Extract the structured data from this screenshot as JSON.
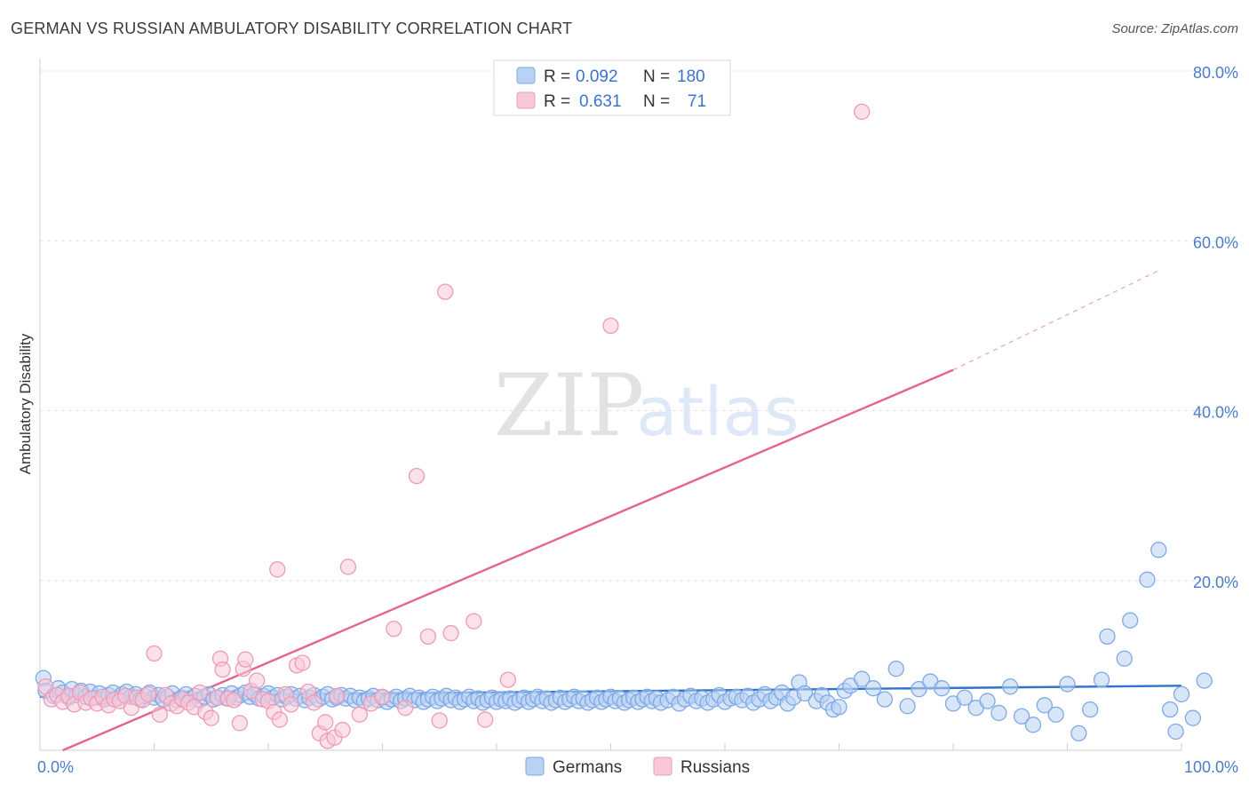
{
  "chart_data": {
    "type": "scatter",
    "title": "GERMAN VS RUSSIAN AMBULATORY DISABILITY CORRELATION CHART",
    "source": "Source: ZipAtlas.com",
    "ylabel": "Ambulatory Disability",
    "xlabel": "",
    "xlim": [
      0,
      100
    ],
    "ylim": [
      0,
      80
    ],
    "x_tick_labels": [
      "0.0%",
      "100.0%"
    ],
    "y_tick_values": [
      20,
      40,
      60,
      80
    ],
    "y_tick_labels": [
      "20.0%",
      "40.0%",
      "60.0%",
      "80.0%"
    ],
    "watermark": {
      "part1": "ZIP",
      "part2": "atlas"
    },
    "legend": [
      {
        "r_label": "R =",
        "r_value": "0.092",
        "n_label": "N =",
        "n_value": "180"
      },
      {
        "r_label": "R =",
        "r_value": "0.631",
        "n_label": "N =",
        "n_value": "71"
      }
    ],
    "series": [
      {
        "name": "Germans",
        "color": "#7ea9e6",
        "fill": "#b9d1f3",
        "line_color": "#2f74c7",
        "trend": {
          "x0": 0,
          "y0": 6.3,
          "x1": 100,
          "y1": 7.6,
          "dashed_from": null
        },
        "points": [
          [
            0.3,
            8.5
          ],
          [
            0.5,
            7.0
          ],
          [
            1.2,
            6.4
          ],
          [
            1.6,
            7.3
          ],
          [
            2.0,
            6.8
          ],
          [
            2.5,
            6.2
          ],
          [
            2.8,
            7.2
          ],
          [
            3.2,
            6.5
          ],
          [
            3.6,
            7.0
          ],
          [
            4.0,
            6.3
          ],
          [
            4.4,
            6.9
          ],
          [
            4.8,
            6.2
          ],
          [
            5.2,
            6.7
          ],
          [
            5.6,
            6.0
          ],
          [
            6.0,
            6.5
          ],
          [
            6.4,
            6.8
          ],
          [
            6.8,
            6.1
          ],
          [
            7.2,
            6.6
          ],
          [
            7.6,
            6.9
          ],
          [
            8.0,
            6.3
          ],
          [
            8.4,
            6.6
          ],
          [
            8.8,
            6.0
          ],
          [
            9.2,
            6.4
          ],
          [
            9.6,
            6.8
          ],
          [
            10.0,
            6.2
          ],
          [
            10.4,
            6.5
          ],
          [
            10.8,
            6.0
          ],
          [
            11.2,
            6.3
          ],
          [
            11.6,
            6.7
          ],
          [
            12.0,
            5.9
          ],
          [
            12.4,
            6.2
          ],
          [
            12.8,
            6.6
          ],
          [
            13.2,
            6.1
          ],
          [
            13.6,
            6.4
          ],
          [
            14.0,
            5.9
          ],
          [
            14.4,
            6.3
          ],
          [
            14.8,
            6.6
          ],
          [
            15.2,
            6.0
          ],
          [
            15.6,
            6.2
          ],
          [
            16.0,
            6.5
          ],
          [
            16.4,
            6.1
          ],
          [
            16.8,
            6.7
          ],
          [
            17.2,
            6.2
          ],
          [
            17.6,
            6.5
          ],
          [
            18.0,
            6.8
          ],
          [
            18.4,
            6.3
          ],
          [
            18.8,
            6.6
          ],
          [
            19.2,
            6.1
          ],
          [
            19.6,
            6.4
          ],
          [
            20.0,
            6.7
          ],
          [
            20.4,
            6.2
          ],
          [
            20.8,
            6.5
          ],
          [
            21.2,
            6.0
          ],
          [
            21.6,
            6.3
          ],
          [
            22.0,
            6.6
          ],
          [
            22.4,
            6.1
          ],
          [
            22.8,
            6.4
          ],
          [
            23.2,
            5.9
          ],
          [
            23.6,
            6.2
          ],
          [
            24.0,
            6.5
          ],
          [
            24.4,
            6.0
          ],
          [
            24.8,
            6.3
          ],
          [
            25.2,
            6.6
          ],
          [
            25.6,
            6.0
          ],
          [
            26.0,
            6.2
          ],
          [
            26.4,
            6.5
          ],
          [
            26.8,
            6.1
          ],
          [
            27.2,
            6.4
          ],
          [
            27.6,
            5.9
          ],
          [
            28.0,
            6.2
          ],
          [
            28.4,
            5.8
          ],
          [
            28.8,
            6.1
          ],
          [
            29.2,
            6.4
          ],
          [
            29.6,
            5.9
          ],
          [
            30.0,
            6.2
          ],
          [
            30.4,
            5.7
          ],
          [
            30.8,
            6.0
          ],
          [
            31.2,
            6.3
          ],
          [
            31.6,
            5.8
          ],
          [
            32.0,
            6.1
          ],
          [
            32.4,
            6.4
          ],
          [
            32.8,
            5.9
          ],
          [
            33.2,
            6.2
          ],
          [
            33.6,
            5.7
          ],
          [
            34.0,
            6.0
          ],
          [
            34.4,
            6.3
          ],
          [
            34.8,
            5.8
          ],
          [
            35.2,
            6.1
          ],
          [
            35.6,
            6.4
          ],
          [
            36.0,
            5.9
          ],
          [
            36.4,
            6.2
          ],
          [
            36.8,
            5.7
          ],
          [
            37.2,
            6.0
          ],
          [
            37.6,
            6.3
          ],
          [
            38.0,
            5.8
          ],
          [
            38.4,
            6.1
          ],
          [
            38.8,
            5.6
          ],
          [
            39.2,
            5.9
          ],
          [
            39.6,
            6.2
          ],
          [
            40.0,
            5.7
          ],
          [
            40.4,
            6.0
          ],
          [
            40.8,
            5.8
          ],
          [
            41.2,
            6.1
          ],
          [
            41.6,
            5.6
          ],
          [
            42.0,
            5.9
          ],
          [
            42.4,
            6.2
          ],
          [
            42.8,
            5.7
          ],
          [
            43.2,
            6.0
          ],
          [
            43.6,
            6.3
          ],
          [
            44.0,
            5.8
          ],
          [
            44.4,
            6.1
          ],
          [
            44.8,
            5.6
          ],
          [
            45.2,
            5.9
          ],
          [
            45.6,
            6.2
          ],
          [
            46.0,
            5.7
          ],
          [
            46.4,
            6.0
          ],
          [
            46.8,
            6.3
          ],
          [
            47.2,
            5.8
          ],
          [
            47.6,
            6.1
          ],
          [
            48.0,
            5.6
          ],
          [
            48.4,
            5.9
          ],
          [
            48.8,
            6.2
          ],
          [
            49.2,
            5.7
          ],
          [
            49.6,
            6.0
          ],
          [
            50.0,
            6.3
          ],
          [
            50.4,
            5.8
          ],
          [
            50.8,
            6.1
          ],
          [
            51.2,
            5.6
          ],
          [
            51.6,
            5.9
          ],
          [
            52.0,
            6.2
          ],
          [
            52.4,
            5.7
          ],
          [
            52.8,
            6.0
          ],
          [
            53.2,
            6.3
          ],
          [
            53.6,
            5.8
          ],
          [
            54.0,
            6.1
          ],
          [
            54.4,
            5.6
          ],
          [
            55.0,
            5.9
          ],
          [
            55.5,
            6.3
          ],
          [
            56.0,
            5.5
          ],
          [
            56.5,
            6.0
          ],
          [
            57.0,
            6.4
          ],
          [
            57.5,
            5.8
          ],
          [
            58.0,
            6.1
          ],
          [
            58.5,
            5.6
          ],
          [
            59.0,
            6.0
          ],
          [
            59.5,
            6.5
          ],
          [
            60.0,
            5.7
          ],
          [
            60.5,
            6.1
          ],
          [
            61.0,
            6.3
          ],
          [
            61.5,
            5.9
          ],
          [
            62.0,
            6.4
          ],
          [
            62.5,
            5.6
          ],
          [
            63.0,
            6.0
          ],
          [
            63.5,
            6.6
          ],
          [
            64.0,
            5.8
          ],
          [
            64.5,
            6.2
          ],
          [
            65.0,
            6.8
          ],
          [
            65.5,
            5.5
          ],
          [
            66.0,
            6.2
          ],
          [
            66.5,
            8.0
          ],
          [
            67.0,
            6.7
          ],
          [
            68.0,
            5.8
          ],
          [
            68.5,
            6.5
          ],
          [
            69.0,
            5.6
          ],
          [
            69.5,
            4.8
          ],
          [
            70.0,
            5.1
          ],
          [
            70.5,
            7.0
          ],
          [
            71.0,
            7.6
          ],
          [
            72.0,
            8.4
          ],
          [
            73.0,
            7.3
          ],
          [
            74.0,
            6.0
          ],
          [
            75.0,
            9.6
          ],
          [
            76.0,
            5.2
          ],
          [
            77.0,
            7.2
          ],
          [
            78.0,
            8.1
          ],
          [
            79.0,
            7.3
          ],
          [
            80.0,
            5.5
          ],
          [
            81.0,
            6.2
          ],
          [
            82.0,
            5.0
          ],
          [
            83.0,
            5.8
          ],
          [
            84.0,
            4.4
          ],
          [
            85.0,
            7.5
          ],
          [
            86.0,
            4.0
          ],
          [
            87.0,
            3.0
          ],
          [
            88.0,
            5.3
          ],
          [
            89.0,
            4.2
          ],
          [
            90.0,
            7.8
          ],
          [
            91.0,
            2.0
          ],
          [
            92.0,
            4.8
          ],
          [
            93.0,
            8.3
          ],
          [
            93.5,
            13.4
          ],
          [
            95.0,
            10.8
          ],
          [
            95.5,
            15.3
          ],
          [
            97.0,
            20.1
          ],
          [
            98.0,
            23.6
          ],
          [
            99.0,
            4.8
          ],
          [
            99.5,
            2.2
          ],
          [
            100.0,
            6.6
          ],
          [
            101.0,
            3.8
          ],
          [
            102.0,
            8.2
          ]
        ]
      },
      {
        "name": "Russians",
        "color": "#ef9ab6",
        "fill": "#f8c8d8",
        "line_color": "#e4648e",
        "trend": {
          "x0": 2.0,
          "y0": 0.0,
          "x1": 80.0,
          "y1": 44.8,
          "dashed_from": 80.0,
          "dashed_to_x": 98.0,
          "dashed_to_y": 56.5
        },
        "points": [
          [
            0.5,
            7.5
          ],
          [
            1.0,
            6.0
          ],
          [
            1.5,
            6.5
          ],
          [
            2.0,
            5.7
          ],
          [
            2.5,
            6.4
          ],
          [
            3.0,
            5.4
          ],
          [
            3.5,
            6.8
          ],
          [
            4.0,
            5.6
          ],
          [
            4.5,
            6.1
          ],
          [
            5.0,
            5.5
          ],
          [
            5.5,
            6.3
          ],
          [
            6.0,
            5.3
          ],
          [
            6.5,
            6.0
          ],
          [
            7.0,
            5.8
          ],
          [
            7.5,
            6.4
          ],
          [
            8.0,
            5.0
          ],
          [
            8.5,
            6.2
          ],
          [
            9.0,
            5.9
          ],
          [
            9.5,
            6.6
          ],
          [
            10.0,
            11.4
          ],
          [
            10.5,
            4.2
          ],
          [
            11.0,
            6.5
          ],
          [
            11.5,
            5.5
          ],
          [
            12.0,
            5.2
          ],
          [
            12.5,
            6.0
          ],
          [
            13.0,
            5.6
          ],
          [
            13.5,
            5.1
          ],
          [
            14.0,
            6.8
          ],
          [
            14.5,
            4.5
          ],
          [
            15.0,
            3.8
          ],
          [
            15.5,
            6.2
          ],
          [
            15.8,
            10.8
          ],
          [
            16.0,
            9.5
          ],
          [
            16.5,
            6.1
          ],
          [
            17.0,
            5.9
          ],
          [
            17.5,
            3.2
          ],
          [
            17.8,
            9.6
          ],
          [
            18.0,
            10.7
          ],
          [
            18.5,
            7.0
          ],
          [
            19.0,
            8.2
          ],
          [
            19.5,
            6.0
          ],
          [
            20.0,
            5.8
          ],
          [
            20.5,
            4.5
          ],
          [
            20.8,
            21.3
          ],
          [
            21.0,
            3.6
          ],
          [
            21.5,
            6.6
          ],
          [
            22.0,
            5.4
          ],
          [
            22.5,
            10.0
          ],
          [
            23.0,
            10.3
          ],
          [
            23.5,
            6.9
          ],
          [
            24.0,
            5.6
          ],
          [
            24.5,
            2.0
          ],
          [
            25.0,
            3.3
          ],
          [
            25.2,
            1.1
          ],
          [
            25.8,
            1.5
          ],
          [
            26.0,
            6.4
          ],
          [
            26.5,
            2.4
          ],
          [
            27.0,
            21.6
          ],
          [
            28.0,
            4.2
          ],
          [
            29.0,
            5.5
          ],
          [
            30.0,
            6.3
          ],
          [
            31.0,
            14.3
          ],
          [
            32.0,
            5.0
          ],
          [
            33.0,
            32.3
          ],
          [
            34.0,
            13.4
          ],
          [
            35.0,
            3.5
          ],
          [
            35.5,
            54.0
          ],
          [
            36.0,
            13.8
          ],
          [
            38.0,
            15.2
          ],
          [
            39.0,
            3.6
          ],
          [
            41.0,
            8.3
          ],
          [
            50.0,
            50.0
          ],
          [
            72.0,
            75.2
          ]
        ]
      }
    ]
  }
}
